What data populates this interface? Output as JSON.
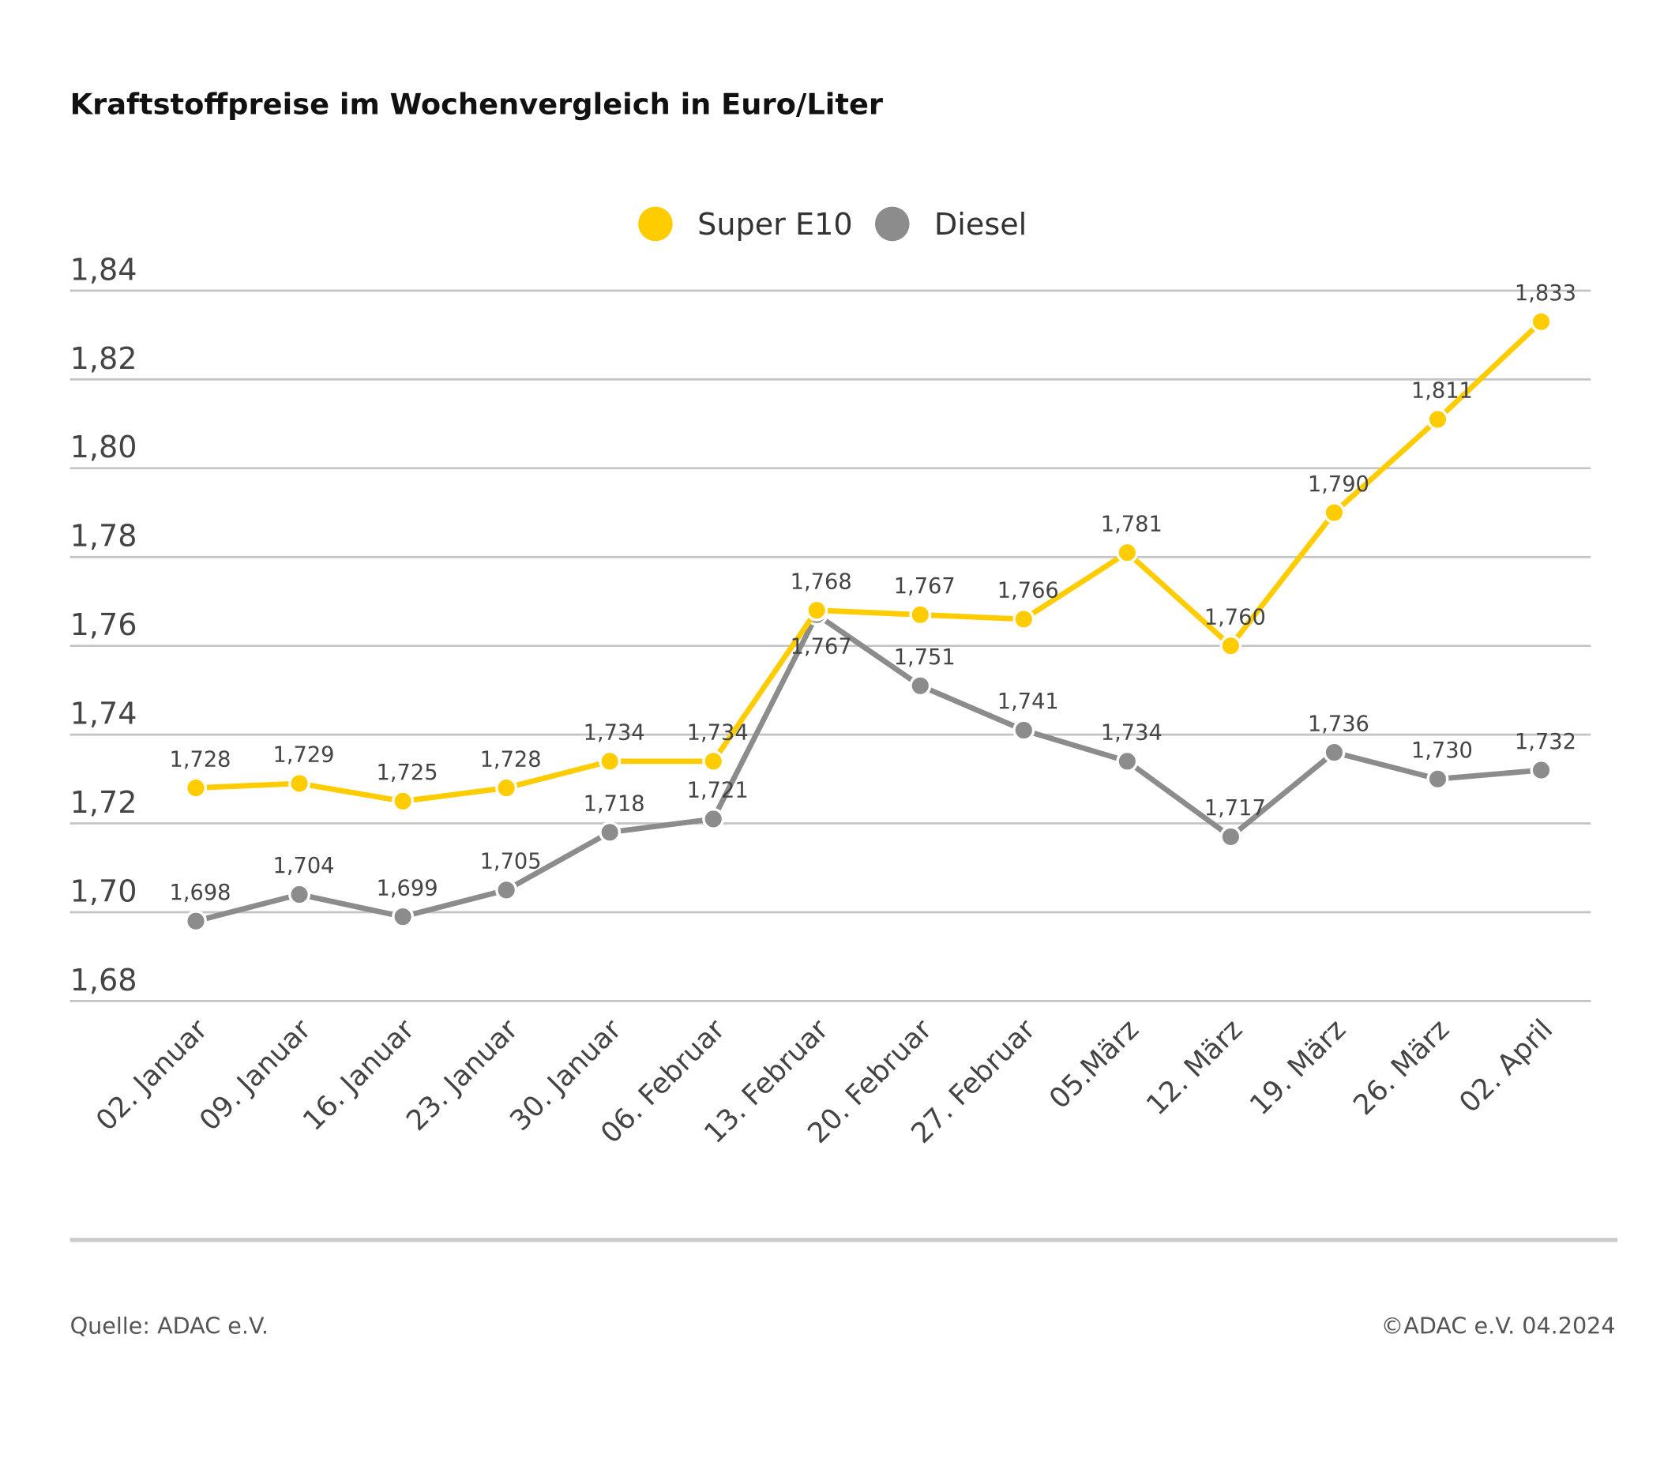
{
  "chart_data": {
    "type": "line",
    "title": "Kraftstoffpreise im Wochenvergleich in Euro/Liter",
    "xlabel": "",
    "ylabel": "",
    "categories": [
      "02. Januar",
      "09. Januar",
      "16. Januar",
      "23. Januar",
      "30. Januar",
      "06. Februar",
      "13. Februar",
      "20. Februar",
      "27. Februar",
      "05.März",
      "12. März",
      "19. März",
      "26. März",
      "02. April"
    ],
    "series": [
      {
        "name": "Super E10",
        "color": "#FFCC00",
        "values": [
          1.728,
          1.729,
          1.725,
          1.728,
          1.734,
          1.734,
          1.768,
          1.767,
          1.766,
          1.781,
          1.76,
          1.79,
          1.811,
          1.833
        ],
        "labels": [
          "1,728",
          "1,729",
          "1,725",
          "1,728",
          "1,734",
          "1,734",
          "1,768",
          "1,767",
          "1,766",
          "1,781",
          "1,760",
          "1,790",
          "1,811",
          "1,833"
        ]
      },
      {
        "name": "Diesel",
        "color": "#8C8C8C",
        "values": [
          1.698,
          1.704,
          1.699,
          1.705,
          1.718,
          1.721,
          1.767,
          1.751,
          1.741,
          1.734,
          1.717,
          1.736,
          1.73,
          1.732
        ],
        "labels": [
          "1,698",
          "1,704",
          "1,699",
          "1,705",
          "1,718",
          "1,721",
          "1,767",
          "1,751",
          "1,741",
          "1,734",
          "1,717",
          "1,736",
          "1,730",
          "1,732"
        ]
      }
    ],
    "ylim": [
      1.68,
      1.84
    ],
    "yticks": [
      1.68,
      1.7,
      1.72,
      1.74,
      1.76,
      1.78,
      1.8,
      1.82,
      1.84
    ],
    "ytick_labels": [
      "1,68",
      "1,70",
      "1,72",
      "1,74",
      "1,76",
      "1,78",
      "1,80",
      "1,82",
      "1,84"
    ],
    "grid": "horizontal",
    "legend_position": "top-center"
  },
  "footer": {
    "source": "Quelle: ADAC e.V.",
    "copyright": "©ADAC e.V. 04.2024"
  }
}
